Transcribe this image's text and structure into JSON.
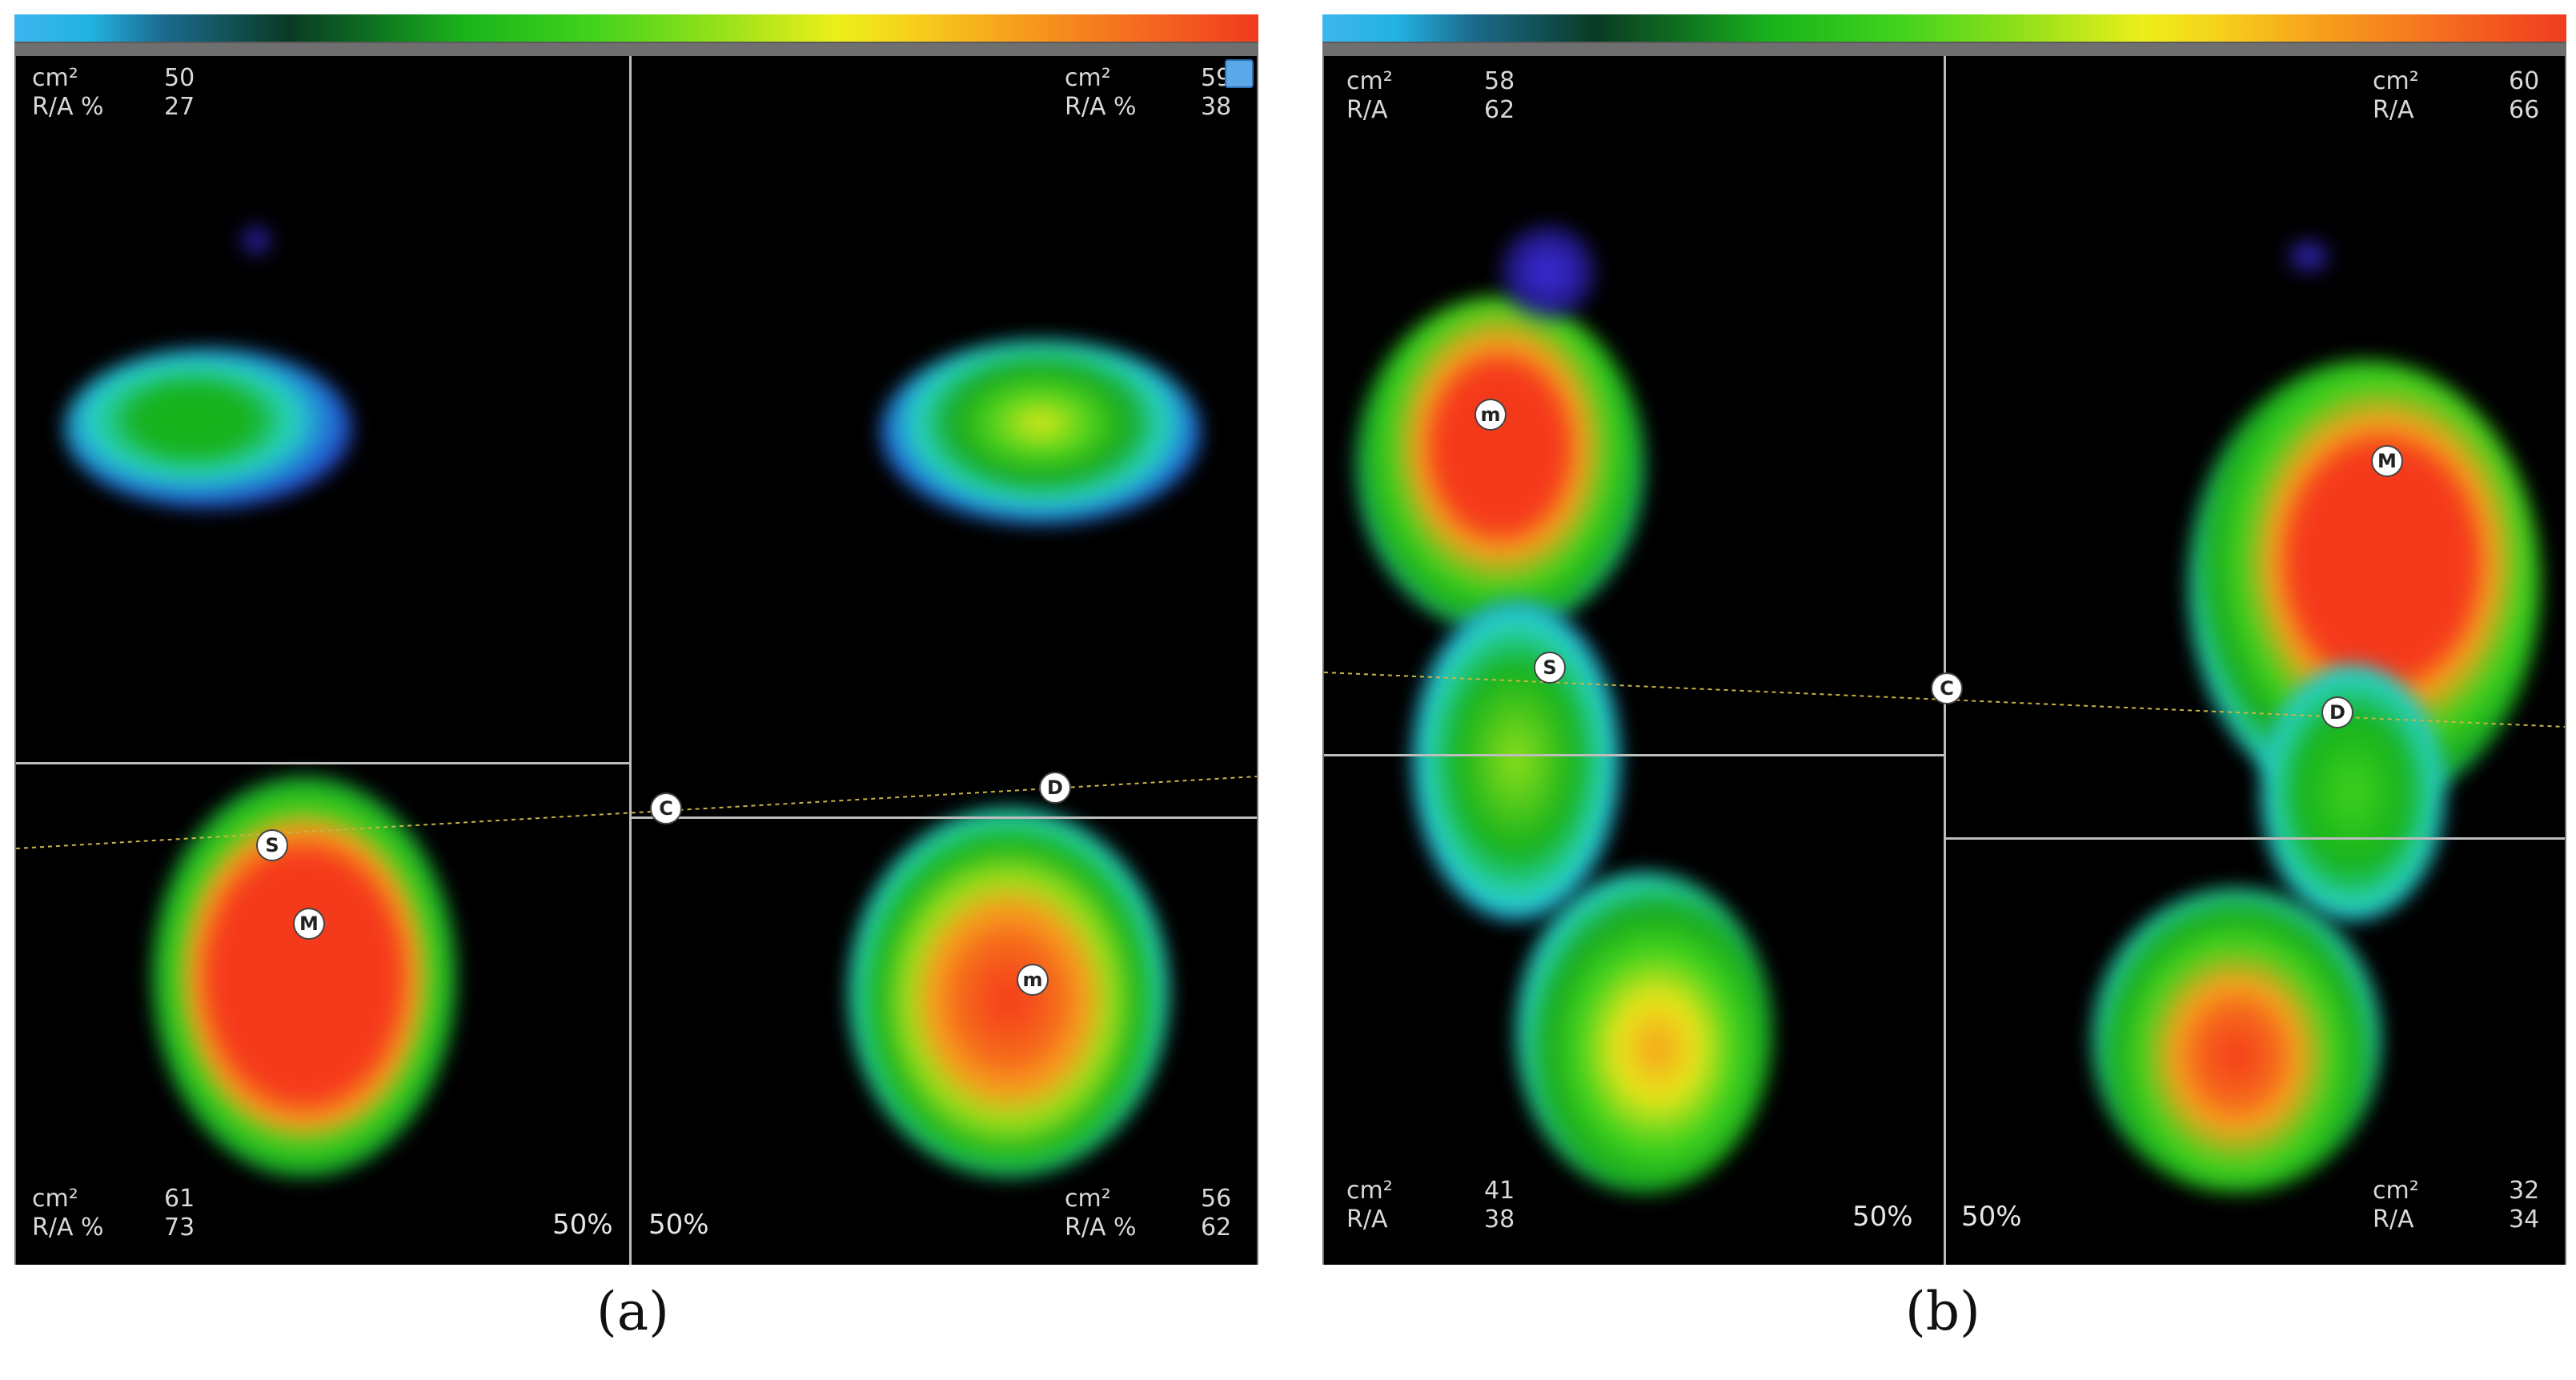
{
  "panels": [
    {
      "caption": "(a)",
      "quadrants": {
        "top_left": {
          "area_label": "cm²",
          "area_value": "50",
          "ratio_label": "R/A %",
          "ratio_value": "27"
        },
        "top_right": {
          "area_label": "cm²",
          "area_value": "59",
          "ratio_label": "R/A %",
          "ratio_value": "38"
        },
        "bottom_left": {
          "area_label": "cm²",
          "area_value": "61",
          "ratio_label": "R/A %",
          "ratio_value": "73",
          "percent": "50%"
        },
        "bottom_right": {
          "area_label": "cm²",
          "area_value": "56",
          "ratio_label": "R/A %",
          "ratio_value": "62",
          "percent": "50%"
        }
      },
      "markers": {
        "s": "S",
        "m_upper": "M",
        "c": "C",
        "d": "D",
        "m_lower": "m"
      }
    },
    {
      "caption": "(b)",
      "quadrants": {
        "top_left": {
          "area_label": "cm²",
          "area_value": "58",
          "ratio_label": "R/A",
          "ratio_value": "62"
        },
        "top_right": {
          "area_label": "cm²",
          "area_value": "60",
          "ratio_label": "R/A",
          "ratio_value": "66"
        },
        "bottom_left": {
          "area_label": "cm²",
          "area_value": "41",
          "ratio_label": "R/A",
          "ratio_value": "38",
          "percent": "50%"
        },
        "bottom_right": {
          "area_label": "cm²",
          "area_value": "32",
          "ratio_label": "R/A",
          "ratio_value": "34",
          "percent": "50%"
        }
      },
      "markers": {
        "m": "m",
        "s": "S",
        "c": "C",
        "M": "M",
        "d": "D"
      }
    }
  ],
  "icons": {
    "refresh": "refresh-icon"
  },
  "colors": {
    "colorbar_start": "#3db4ee",
    "colorbar_end": "#f03b1f",
    "background": "#000000"
  }
}
